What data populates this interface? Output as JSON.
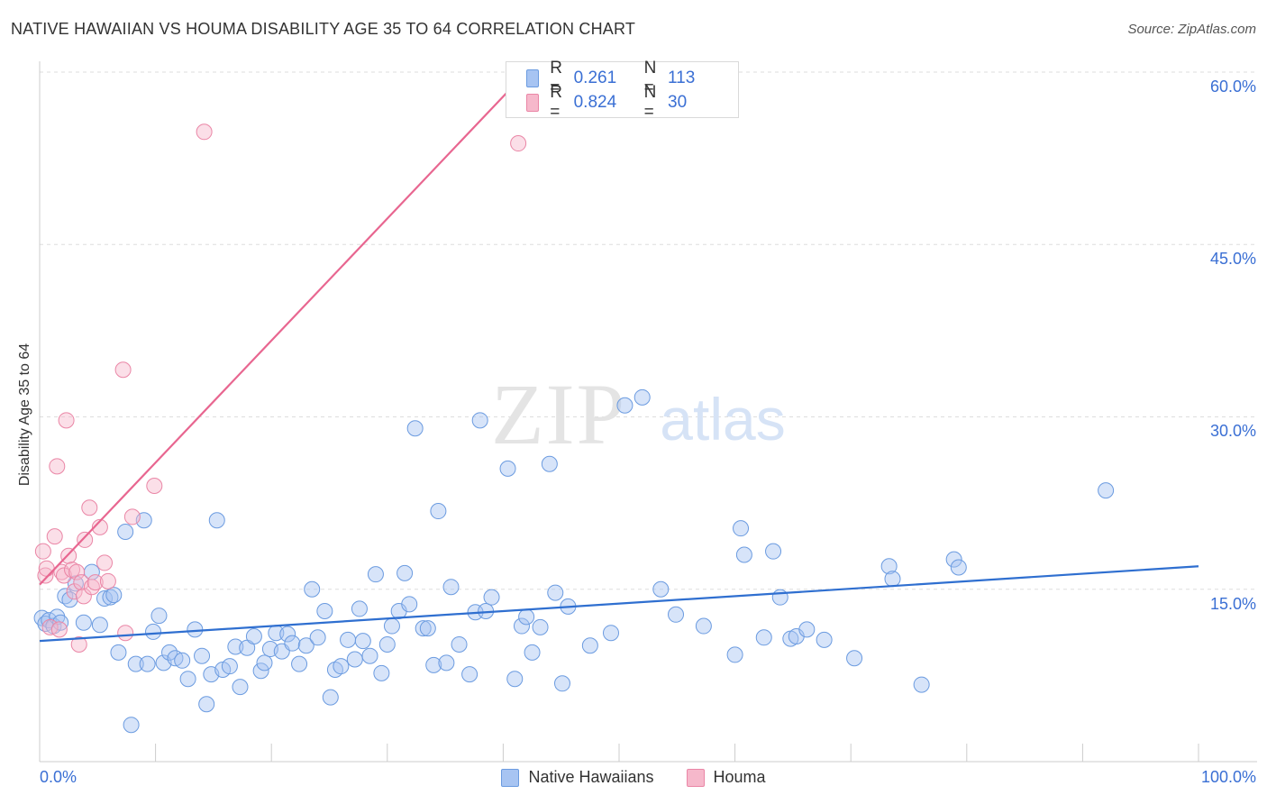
{
  "title": "NATIVE HAWAIIAN VS HOUMA DISABILITY AGE 35 TO 64 CORRELATION CHART",
  "source": "Source: ZipAtlas.com",
  "watermark": {
    "zip": "ZIP",
    "atlas": "atlas"
  },
  "legend": {
    "r_label": "R =",
    "n_label": "N =",
    "rows": [
      {
        "r": "0.261",
        "n": "113",
        "fill": "#a7c4f2",
        "stroke": "#6b9be0"
      },
      {
        "r": "0.824",
        "n": "30",
        "fill": "#f6b8cb",
        "stroke": "#ea86a6"
      }
    ]
  },
  "bottom_legend": [
    {
      "label": "Native Hawaiians",
      "fill": "#a7c4f2",
      "stroke": "#6b9be0"
    },
    {
      "label": "Houma",
      "fill": "#f6b8cb",
      "stroke": "#ea86a6"
    }
  ],
  "colors": {
    "blue_point_fill": "rgba(167,196,242,0.45)",
    "blue_point_stroke": "#6b9be0",
    "pink_point_fill": "rgba(246,184,203,0.45)",
    "pink_point_stroke": "#ea86a6",
    "blue_line": "#2f6fd0",
    "pink_line": "#e86690",
    "grid": "#dddddd",
    "axis_text": "#3a6fd4"
  },
  "chart_data": {
    "type": "scatter",
    "title": "NATIVE HAWAIIAN VS HOUMA DISABILITY AGE 35 TO 64 CORRELATION CHART",
    "xlabel": "",
    "ylabel": "Disability Age 35 to 64",
    "xlim": [
      0,
      100
    ],
    "ylim": [
      0,
      60
    ],
    "x_tick_labels": [
      {
        "value": 0,
        "label": "0.0%"
      },
      {
        "value": 100,
        "label": "100.0%"
      }
    ],
    "y_tick_labels": [
      {
        "value": 15,
        "label": "15.0%"
      },
      {
        "value": 30,
        "label": "30.0%"
      },
      {
        "value": 45,
        "label": "45.0%"
      },
      {
        "value": 60,
        "label": "60.0%"
      }
    ],
    "grid": "horizontal dashed",
    "series": [
      {
        "name": "Native Hawaiians",
        "r": 0.261,
        "n": 113,
        "trendline": {
          "x": [
            0,
            100
          ],
          "y": [
            10.5,
            17.0
          ]
        },
        "points": [
          [
            0.2,
            12.5
          ],
          [
            0.5,
            12.0
          ],
          [
            0.8,
            12.3
          ],
          [
            1.2,
            11.8
          ],
          [
            1.5,
            12.6
          ],
          [
            1.8,
            12.1
          ],
          [
            2.2,
            14.4
          ],
          [
            2.6,
            14.1
          ],
          [
            3.1,
            15.5
          ],
          [
            3.8,
            12.1
          ],
          [
            4.5,
            16.5
          ],
          [
            5.2,
            11.9
          ],
          [
            5.6,
            14.2
          ],
          [
            6.1,
            14.3
          ],
          [
            6.4,
            14.5
          ],
          [
            6.8,
            9.5
          ],
          [
            7.4,
            20.0
          ],
          [
            7.9,
            3.2
          ],
          [
            8.3,
            8.5
          ],
          [
            9.0,
            21.0
          ],
          [
            9.3,
            8.5
          ],
          [
            9.8,
            11.3
          ],
          [
            10.3,
            12.7
          ],
          [
            10.7,
            8.6
          ],
          [
            11.2,
            9.5
          ],
          [
            11.7,
            9.0
          ],
          [
            12.3,
            8.8
          ],
          [
            12.8,
            7.2
          ],
          [
            13.4,
            11.5
          ],
          [
            14.0,
            9.2
          ],
          [
            14.4,
            5.0
          ],
          [
            14.8,
            7.6
          ],
          [
            15.3,
            21.0
          ],
          [
            15.8,
            8.0
          ],
          [
            16.4,
            8.3
          ],
          [
            16.9,
            10.0
          ],
          [
            17.3,
            6.5
          ],
          [
            17.9,
            9.9
          ],
          [
            18.5,
            10.9
          ],
          [
            19.1,
            7.9
          ],
          [
            19.4,
            8.6
          ],
          [
            19.9,
            9.8
          ],
          [
            20.4,
            11.2
          ],
          [
            20.9,
            9.6
          ],
          [
            21.4,
            11.1
          ],
          [
            21.8,
            10.3
          ],
          [
            22.4,
            8.5
          ],
          [
            23.0,
            10.1
          ],
          [
            23.5,
            15.0
          ],
          [
            24.0,
            10.8
          ],
          [
            24.6,
            13.1
          ],
          [
            25.1,
            5.6
          ],
          [
            25.5,
            8.0
          ],
          [
            26.0,
            8.3
          ],
          [
            26.6,
            10.6
          ],
          [
            27.2,
            8.9
          ],
          [
            27.6,
            13.3
          ],
          [
            27.9,
            10.5
          ],
          [
            28.5,
            9.2
          ],
          [
            29.0,
            16.3
          ],
          [
            29.5,
            7.7
          ],
          [
            30.0,
            10.2
          ],
          [
            30.4,
            11.8
          ],
          [
            31.0,
            13.1
          ],
          [
            31.5,
            16.4
          ],
          [
            31.9,
            13.7
          ],
          [
            32.4,
            29.0
          ],
          [
            33.1,
            11.6
          ],
          [
            33.5,
            11.6
          ],
          [
            34.0,
            8.4
          ],
          [
            34.4,
            21.8
          ],
          [
            35.1,
            8.6
          ],
          [
            35.5,
            15.2
          ],
          [
            36.2,
            10.2
          ],
          [
            37.1,
            7.6
          ],
          [
            37.6,
            13.0
          ],
          [
            38.0,
            29.7
          ],
          [
            38.5,
            13.1
          ],
          [
            39.0,
            14.3
          ],
          [
            40.4,
            25.5
          ],
          [
            41.0,
            7.2
          ],
          [
            41.6,
            11.8
          ],
          [
            42.0,
            12.6
          ],
          [
            42.5,
            9.5
          ],
          [
            43.2,
            11.7
          ],
          [
            44.0,
            25.9
          ],
          [
            44.5,
            14.7
          ],
          [
            45.1,
            6.8
          ],
          [
            45.6,
            13.5
          ],
          [
            47.5,
            10.1
          ],
          [
            49.3,
            11.2
          ],
          [
            50.5,
            31.0
          ],
          [
            52.0,
            31.7
          ],
          [
            53.6,
            15.0
          ],
          [
            54.9,
            12.8
          ],
          [
            57.3,
            11.8
          ],
          [
            60.0,
            9.3
          ],
          [
            60.5,
            20.3
          ],
          [
            60.8,
            18.0
          ],
          [
            62.5,
            10.8
          ],
          [
            63.3,
            18.3
          ],
          [
            63.9,
            14.3
          ],
          [
            64.8,
            10.7
          ],
          [
            65.3,
            10.9
          ],
          [
            66.2,
            11.5
          ],
          [
            67.7,
            10.6
          ],
          [
            70.3,
            9.0
          ],
          [
            73.3,
            17.0
          ],
          [
            73.6,
            15.9
          ],
          [
            76.1,
            6.7
          ],
          [
            78.9,
            17.6
          ],
          [
            79.3,
            16.9
          ],
          [
            92.0,
            23.6
          ]
        ]
      },
      {
        "name": "Houma",
        "r": 0.824,
        "n": 30,
        "trendline": {
          "x": [
            0,
            42
          ],
          "y": [
            15.4,
            60.0
          ]
        },
        "points": [
          [
            0.3,
            18.3
          ],
          [
            0.5,
            16.2
          ],
          [
            0.6,
            16.8
          ],
          [
            0.9,
            11.7
          ],
          [
            1.3,
            19.6
          ],
          [
            1.5,
            25.7
          ],
          [
            1.7,
            11.5
          ],
          [
            1.9,
            16.5
          ],
          [
            2.1,
            16.2
          ],
          [
            2.3,
            29.7
          ],
          [
            2.5,
            17.9
          ],
          [
            2.8,
            16.7
          ],
          [
            3.0,
            14.8
          ],
          [
            3.2,
            16.5
          ],
          [
            3.4,
            10.2
          ],
          [
            3.6,
            15.6
          ],
          [
            3.8,
            14.4
          ],
          [
            3.9,
            19.3
          ],
          [
            4.3,
            22.1
          ],
          [
            4.5,
            15.2
          ],
          [
            4.8,
            15.6
          ],
          [
            5.2,
            20.4
          ],
          [
            5.6,
            17.3
          ],
          [
            5.9,
            15.7
          ],
          [
            7.2,
            34.1
          ],
          [
            7.4,
            11.2
          ],
          [
            8.0,
            21.3
          ],
          [
            9.9,
            24.0
          ],
          [
            14.2,
            54.8
          ],
          [
            41.3,
            53.8
          ]
        ]
      }
    ]
  }
}
